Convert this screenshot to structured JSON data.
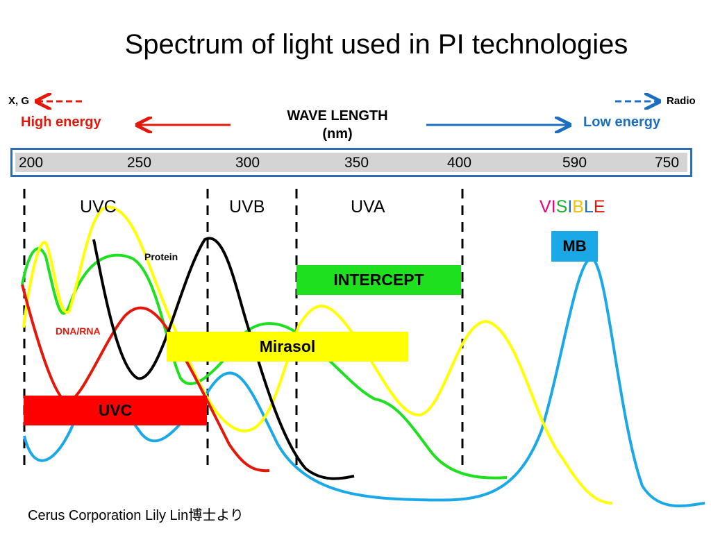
{
  "title": "Spectrum of light used in PI technologies",
  "top_labels": {
    "left_arrow_label": "X, G",
    "right_arrow_label": "Radio",
    "high_energy": "High energy",
    "low_energy": "Low energy",
    "wave_length_line1": "WAVE LENGTH",
    "wave_length_line2": "(nm)"
  },
  "chart_data": {
    "type": "line",
    "xlabel": "WAVE LENGTH (nm)",
    "x_ticks": [
      "200",
      "250",
      "300",
      "350",
      "400",
      "590",
      "750"
    ],
    "bands": [
      "UVC",
      "UVB",
      "UVA"
    ],
    "visible_band": {
      "letters": [
        "V",
        "I",
        "S",
        "I",
        "B",
        "L",
        "E"
      ],
      "colors": [
        "#e6007e",
        "#e6007e",
        "#1ab02b",
        "#1a6fc0",
        "#f2c200",
        "#1a6fc0",
        "#e3170a"
      ]
    },
    "technology_boxes": [
      {
        "label": "INTERCEPT",
        "color": "#1ee01e"
      },
      {
        "label": "Mirasol",
        "color": "#ffff00"
      },
      {
        "label": "UVC",
        "color": "#ff0000"
      },
      {
        "label": "MB",
        "color": "#1aa9e6"
      }
    ],
    "curve_labels": [
      {
        "label": "Protein",
        "color": "#000000"
      },
      {
        "label": "DNA/RNA",
        "color": "#e3170a"
      }
    ],
    "series": [
      {
        "name": "DNA/RNA",
        "color": "#e3170a"
      },
      {
        "name": "Protein",
        "color": "#000000"
      },
      {
        "color": "#1ee01e"
      },
      {
        "color": "#ffff00"
      },
      {
        "color": "#1aa9e6"
      }
    ]
  },
  "credit": "Cerus Corporation Lily Lin博士より"
}
